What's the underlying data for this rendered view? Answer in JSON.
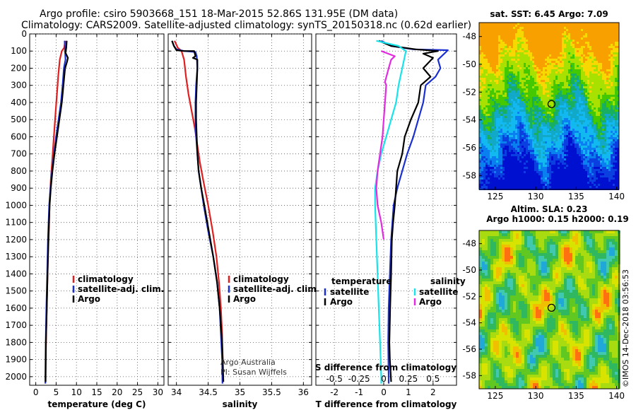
{
  "header": {
    "line1": "Argo profile: csiro 5903668_151 18-Mar-2015 52.86S 131.95E (DM data)",
    "line2": "Climatology: CARS2009. Satellite-adjusted climatology: synTS_20150318.nc (0.62d earlier)"
  },
  "watermark": "©IMOS 14-Dec-2018 03:56:53",
  "depth_ticks": [
    0,
    100,
    200,
    300,
    400,
    500,
    600,
    700,
    800,
    900,
    1000,
    1100,
    1200,
    1300,
    1400,
    1500,
    1600,
    1700,
    1800,
    1900,
    2000
  ],
  "colors": {
    "climatology": "#e02020",
    "satellite": "#1a2fd0",
    "argo": "#000000",
    "cyan": "#19e3ea",
    "magenta": "#e22be0"
  },
  "chart_data": [
    {
      "type": "line",
      "xlabel": "temperature (deg C)",
      "xticks": [
        0,
        5,
        10,
        15,
        20,
        25,
        30
      ],
      "xlim": [
        -1.5,
        31.5
      ],
      "ylim": [
        0,
        2050
      ],
      "y_axis": "depth (reversed)",
      "grid": true,
      "legend": {
        "placement": "bottom-right",
        "entries": [
          "climatology",
          "satellite-adj. clim.",
          "Argo"
        ]
      },
      "series": [
        {
          "name": "climatology",
          "color": "#e02020",
          "points": [
            [
              7.2,
              40
            ],
            [
              7.0,
              80
            ],
            [
              6.4,
              100
            ],
            [
              5.9,
              150
            ],
            [
              5.5,
              250
            ],
            [
              5.2,
              350
            ],
            [
              4.9,
              450
            ],
            [
              4.6,
              550
            ],
            [
              4.3,
              650
            ],
            [
              4.0,
              750
            ],
            [
              3.7,
              850
            ],
            [
              3.4,
              1000
            ],
            [
              3.2,
              1150
            ],
            [
              3.0,
              1300
            ],
            [
              2.85,
              1450
            ],
            [
              2.7,
              1600
            ],
            [
              2.55,
              1750
            ],
            [
              2.45,
              1900
            ],
            [
              2.4,
              2030
            ]
          ]
        },
        {
          "name": "satellite-adj. clim.",
          "color": "#1a2fd0",
          "points": [
            [
              7.1,
              40
            ],
            [
              7.2,
              100
            ],
            [
              7.3,
              150
            ],
            [
              6.9,
              200
            ],
            [
              6.6,
              300
            ],
            [
              6.2,
              400
            ],
            [
              5.6,
              500
            ],
            [
              5.0,
              600
            ],
            [
              4.5,
              700
            ],
            [
              4.0,
              800
            ],
            [
              3.6,
              900
            ],
            [
              3.3,
              1000
            ],
            [
              3.0,
              1200
            ],
            [
              2.8,
              1400
            ],
            [
              2.6,
              1600
            ],
            [
              2.45,
              1800
            ],
            [
              2.35,
              2000
            ],
            [
              2.35,
              2040
            ]
          ]
        },
        {
          "name": "Argo",
          "color": "#000000",
          "points": [
            [
              7.6,
              40
            ],
            [
              7.5,
              80
            ],
            [
              7.3,
              110
            ],
            [
              7.9,
              140
            ],
            [
              7.7,
              160
            ],
            [
              7.2,
              200
            ],
            [
              7.0,
              250
            ],
            [
              6.8,
              300
            ],
            [
              6.4,
              400
            ],
            [
              5.8,
              500
            ],
            [
              5.2,
              600
            ],
            [
              4.6,
              700
            ],
            [
              4.1,
              800
            ],
            [
              3.7,
              900
            ],
            [
              3.4,
              1000
            ],
            [
              3.1,
              1200
            ],
            [
              2.9,
              1400
            ],
            [
              2.7,
              1600
            ],
            [
              2.5,
              1800
            ],
            [
              2.4,
              2000
            ],
            [
              2.4,
              2030
            ]
          ]
        }
      ]
    },
    {
      "type": "line",
      "xlabel": "salinity",
      "xticks": [
        34,
        34.5,
        35,
        35.5,
        36
      ],
      "xlim": [
        33.87,
        36.13
      ],
      "ylim": [
        0,
        2050
      ],
      "y_axis": "depth (reversed)",
      "grid": true,
      "legend": {
        "placement": "bottom-right",
        "entries": [
          "climatology",
          "satellite-adj. clim.",
          "Argo"
        ]
      },
      "annotations": [
        "Argo Australia",
        "PI: Susan Wijffels"
      ],
      "series": [
        {
          "name": "climatology",
          "color": "#e02020",
          "points": [
            [
              33.97,
              40
            ],
            [
              34.02,
              80
            ],
            [
              34.08,
              100
            ],
            [
              34.12,
              150
            ],
            [
              34.15,
              250
            ],
            [
              34.19,
              350
            ],
            [
              34.24,
              450
            ],
            [
              34.29,
              550
            ],
            [
              34.33,
              650
            ],
            [
              34.37,
              750
            ],
            [
              34.42,
              850
            ],
            [
              34.5,
              1000
            ],
            [
              34.57,
              1150
            ],
            [
              34.63,
              1300
            ],
            [
              34.67,
              1450
            ],
            [
              34.7,
              1600
            ],
            [
              34.72,
              1750
            ],
            [
              34.73,
              1900
            ],
            [
              34.735,
              2030
            ]
          ]
        },
        {
          "name": "satellite-adj. clim.",
          "color": "#1a2fd0",
          "points": [
            [
              33.93,
              40
            ],
            [
              33.96,
              70
            ],
            [
              34.0,
              90
            ],
            [
              34.12,
              100
            ],
            [
              34.3,
              105
            ],
            [
              34.32,
              130
            ],
            [
              34.33,
              200
            ],
            [
              34.31,
              300
            ],
            [
              34.3,
              400
            ],
            [
              34.3,
              500
            ],
            [
              34.31,
              600
            ],
            [
              34.33,
              700
            ],
            [
              34.35,
              800
            ],
            [
              34.39,
              900
            ],
            [
              34.43,
              1000
            ],
            [
              34.5,
              1150
            ],
            [
              34.58,
              1300
            ],
            [
              34.64,
              1450
            ],
            [
              34.68,
              1600
            ],
            [
              34.7,
              1750
            ],
            [
              34.72,
              1900
            ],
            [
              34.725,
              2040
            ]
          ]
        },
        {
          "name": "Argo",
          "color": "#000000",
          "points": [
            [
              33.93,
              40
            ],
            [
              33.96,
              70
            ],
            [
              34.0,
              95
            ],
            [
              34.12,
              100
            ],
            [
              34.28,
              100
            ],
            [
              34.3,
              130
            ],
            [
              34.26,
              140
            ],
            [
              34.33,
              150
            ],
            [
              34.33,
              200
            ],
            [
              34.32,
              300
            ],
            [
              34.31,
              400
            ],
            [
              34.31,
              500
            ],
            [
              34.32,
              600
            ],
            [
              34.33,
              700
            ],
            [
              34.35,
              800
            ],
            [
              34.39,
              900
            ],
            [
              34.44,
              1000
            ],
            [
              34.51,
              1150
            ],
            [
              34.58,
              1300
            ],
            [
              34.64,
              1450
            ],
            [
              34.68,
              1600
            ],
            [
              34.71,
              1750
            ],
            [
              34.73,
              1900
            ],
            [
              34.74,
              2030
            ]
          ]
        }
      ]
    },
    {
      "type": "line",
      "xlabel": "T difference from climatology",
      "xticks": [
        -2,
        -1,
        0,
        1,
        2
      ],
      "xlim": [
        -2.75,
        2.95
      ],
      "secondary_xlabel": "S difference from climatology",
      "secondary_xticks": [
        {
          "label": "-0.5",
          "t": -2
        },
        {
          "label": "-0.25",
          "t": -1
        },
        {
          "label": "0",
          "t": 0
        },
        {
          "label": "0.25",
          "t": 1
        },
        {
          "label": "0.5",
          "t": 2
        }
      ],
      "ylim": [
        0,
        2050
      ],
      "y_axis": "depth (reversed)",
      "grid": true,
      "legend": {
        "placement": "bottom",
        "groups": [
          {
            "title": "temperature",
            "entries": [
              "satellite",
              "Argo"
            ]
          },
          {
            "title": "salinity",
            "entries": [
              "satellite",
              "Argo"
            ]
          }
        ]
      },
      "series": [
        {
          "name": "temperature satellite",
          "color": "#1a2fd0",
          "points": [
            [
              -0.1,
              40
            ],
            [
              0.3,
              70
            ],
            [
              1.2,
              90
            ],
            [
              2.6,
              95
            ],
            [
              2.2,
              150
            ],
            [
              2.3,
              200
            ],
            [
              2.1,
              250
            ],
            [
              1.7,
              300
            ],
            [
              1.6,
              400
            ],
            [
              1.4,
              500
            ],
            [
              1.2,
              600
            ],
            [
              0.95,
              700
            ],
            [
              0.75,
              800
            ],
            [
              0.55,
              900
            ],
            [
              0.4,
              1000
            ],
            [
              0.3,
              1200
            ],
            [
              0.25,
              1400
            ],
            [
              0.2,
              1600
            ],
            [
              0.18,
              1800
            ],
            [
              0.2,
              2000
            ],
            [
              0.2,
              2040
            ]
          ]
        },
        {
          "name": "temperature Argo",
          "color": "#000000",
          "points": [
            [
              -0.2,
              40
            ],
            [
              0.3,
              70
            ],
            [
              1.3,
              90
            ],
            [
              2.2,
              100
            ],
            [
              1.6,
              115
            ],
            [
              2.0,
              140
            ],
            [
              1.6,
              200
            ],
            [
              1.9,
              250
            ],
            [
              1.5,
              300
            ],
            [
              1.4,
              400
            ],
            [
              1.1,
              500
            ],
            [
              0.85,
              600
            ],
            [
              0.75,
              700
            ],
            [
              0.55,
              800
            ],
            [
              0.5,
              900
            ],
            [
              0.45,
              1000
            ],
            [
              0.38,
              1100
            ],
            [
              0.33,
              1200
            ],
            [
              0.3,
              1400
            ],
            [
              0.26,
              1600
            ],
            [
              0.23,
              1800
            ],
            [
              0.25,
              1900
            ],
            [
              0.3,
              2030
            ]
          ]
        },
        {
          "name": "salinity satellite",
          "color": "#19e3ea",
          "points": [
            [
              -0.3,
              40
            ],
            [
              0.6,
              70
            ],
            [
              0.9,
              100
            ],
            [
              0.75,
              200
            ],
            [
              0.6,
              300
            ],
            [
              0.5,
              400
            ],
            [
              0.3,
              500
            ],
            [
              0.1,
              600
            ],
            [
              -0.1,
              700
            ],
            [
              -0.25,
              800
            ],
            [
              -0.35,
              900
            ],
            [
              -0.35,
              1000
            ],
            [
              -0.3,
              1200
            ],
            [
              -0.25,
              1400
            ],
            [
              -0.2,
              1600
            ],
            [
              -0.15,
              1800
            ],
            [
              -0.1,
              2000
            ],
            [
              -0.1,
              2040
            ]
          ]
        },
        {
          "name": "salinity Argo",
          "color": "#e22be0",
          "points": [
            [
              -0.1,
              100
            ],
            [
              0.45,
              130
            ],
            [
              0.3,
              150
            ],
            [
              0.2,
              200
            ],
            [
              0.05,
              280
            ],
            [
              0.1,
              300
            ],
            [
              0.05,
              400
            ],
            [
              0.0,
              500
            ],
            [
              -0.05,
              600
            ],
            [
              -0.15,
              700
            ],
            [
              -0.25,
              800
            ],
            [
              -0.3,
              900
            ],
            [
              -0.25,
              1000
            ],
            [
              -0.1,
              1100
            ],
            [
              0.0,
              1200
            ]
          ]
        }
      ]
    },
    {
      "type": "heatmap",
      "title": "sat. SST: 6.45 Argo: 7.09",
      "xticks": [
        125,
        130,
        135,
        140
      ],
      "yticks": [
        -48,
        -50,
        -52,
        -54,
        -56,
        -58
      ],
      "xlim": [
        123,
        140.3
      ],
      "ylim": [
        -59.0,
        -47.0
      ],
      "marker": {
        "lon": 131.95,
        "lat": -52.86
      }
    },
    {
      "type": "heatmap",
      "title": "Altim. SLA: 0.23",
      "subtitle": "Argo h1000: 0.15 h2000: 0.19",
      "xticks": [
        125,
        130,
        135,
        140
      ],
      "yticks": [
        -48,
        -50,
        -52,
        -54,
        -56,
        -58
      ],
      "xlim": [
        123,
        140.3
      ],
      "ylim": [
        -59.0,
        -47.0
      ],
      "marker": {
        "lon": 131.95,
        "lat": -52.86
      }
    }
  ]
}
